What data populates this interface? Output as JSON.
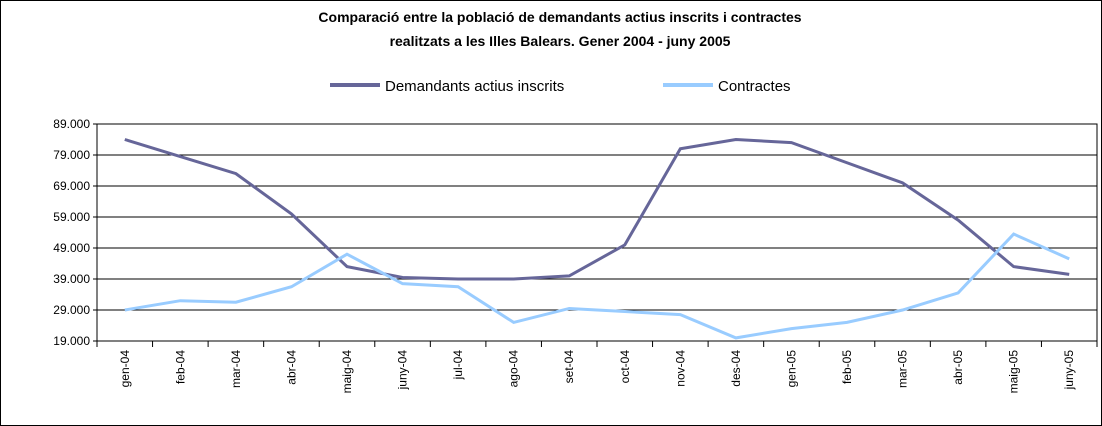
{
  "chart_data": {
    "type": "line",
    "title": [
      "Comparació entre la població de demandants actius inscrits i contractes",
      "realitzats a les Illes Balears. Gener 2004 - juny 2005"
    ],
    "categories": [
      "gen-04",
      "feb-04",
      "mar-04",
      "abr-04",
      "maig-04",
      "juny-04",
      "jul-04",
      "ago-04",
      "set-04",
      "oct-04",
      "nov-04",
      "des-04",
      "gen-05",
      "feb-05",
      "mar-05",
      "abr-05",
      "maig-05",
      "juny-05"
    ],
    "series": [
      {
        "name": "Demandants actius inscrits",
        "color": "#666699",
        "values": [
          84000,
          78500,
          73000,
          60000,
          43000,
          39500,
          39000,
          39000,
          40000,
          50000,
          81000,
          84000,
          83000,
          76500,
          70000,
          58000,
          43000,
          40500
        ]
      },
      {
        "name": "Contractes",
        "color": "#99ccff",
        "values": [
          29000,
          32000,
          31500,
          36500,
          47000,
          37500,
          36500,
          25000,
          29500,
          28500,
          27500,
          20000,
          23000,
          25000,
          29000,
          34500,
          53500,
          45500
        ]
      }
    ],
    "ylim": [
      19000,
      89000
    ],
    "yticks": [
      {
        "value": 19000,
        "label": "19.000"
      },
      {
        "value": 29000,
        "label": "29.000"
      },
      {
        "value": 39000,
        "label": "39.000"
      },
      {
        "value": 49000,
        "label": "49.000"
      },
      {
        "value": 59000,
        "label": "59.000"
      },
      {
        "value": 69000,
        "label": "69.000"
      },
      {
        "value": 79000,
        "label": "79.000"
      },
      {
        "value": 89000,
        "label": "89.000"
      }
    ],
    "grid": true,
    "legend": "top"
  }
}
